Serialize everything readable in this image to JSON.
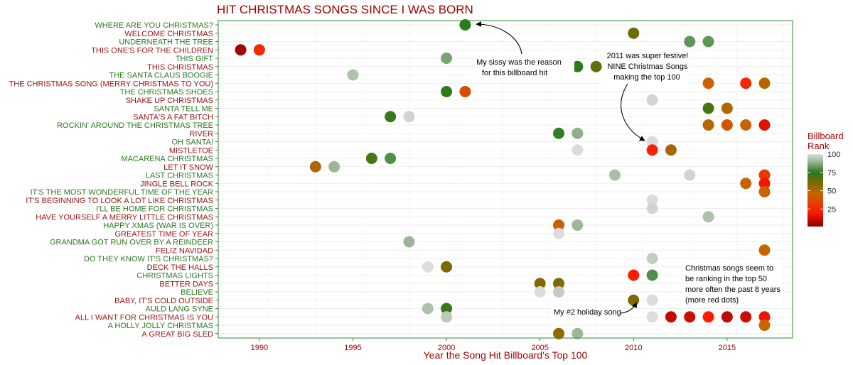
{
  "chart_data": {
    "type": "scatter",
    "title": "HIT CHRISTMAS SONGS SINCE I WAS BORN",
    "xlabel": "Year the Song Hit Billboard's Top 100",
    "ylabel": "",
    "xlim": [
      1987.8,
      2018.5
    ],
    "x_ticks": [
      1990,
      1995,
      2000,
      2005,
      2010,
      2015
    ],
    "grid": true,
    "legend": {
      "title_line1": "Billboard",
      "title_line2": "Rank",
      "position": "right",
      "ticks": [
        100,
        75,
        50,
        25
      ],
      "range": [
        1,
        100
      ]
    },
    "colors": {
      "title": "#a40000",
      "label_odd": "#2a7a1e",
      "label_even": "#a01414",
      "border": "#2e8b2e",
      "grid": "#e9e9e9"
    },
    "songs": [
      {
        "name": "WHERE ARE YOU CHRISTMAS?",
        "points": [
          {
            "year": 2001,
            "rank": 75
          }
        ]
      },
      {
        "name": "WELCOME CHRISTMAS",
        "points": [
          {
            "year": 2010,
            "rank": 62
          }
        ]
      },
      {
        "name": "UNDERNEATH THE TREE",
        "points": [
          {
            "year": 2013,
            "rank": 82
          },
          {
            "year": 2014,
            "rank": 82
          }
        ]
      },
      {
        "name": "THIS ONE'S FOR THE CHILDREN",
        "points": [
          {
            "year": 1989,
            "rank": 5
          },
          {
            "year": 1990,
            "rank": 25
          }
        ]
      },
      {
        "name": "THIS GIFT",
        "points": [
          {
            "year": 2000,
            "rank": 85
          }
        ]
      },
      {
        "name": "THIS CHRISTMAS",
        "points": [
          {
            "year": 2007,
            "rank": 74
          },
          {
            "year": 2008,
            "rank": 65
          }
        ]
      },
      {
        "name": "THE SANTA CLAUS BOOGIE",
        "points": [
          {
            "year": 1995,
            "rank": 93
          }
        ]
      },
      {
        "name": "THE CHRISTMAS SONG (MERRY CHRISTMAS TO YOU)",
        "points": [
          {
            "year": 2014,
            "rank": 44
          },
          {
            "year": 2016,
            "rank": 25
          },
          {
            "year": 2017,
            "rank": 48
          }
        ]
      },
      {
        "name": "THE CHRISTMAS SHOES",
        "points": [
          {
            "year": 2000,
            "rank": 73
          },
          {
            "year": 2001,
            "rank": 37
          }
        ]
      },
      {
        "name": "SHAKE UP CHRISTMAS",
        "points": [
          {
            "year": 2011,
            "rank": 98
          }
        ]
      },
      {
        "name": "SANTA TELL ME",
        "points": [
          {
            "year": 2014,
            "rank": 70
          },
          {
            "year": 2015,
            "rank": 50
          }
        ]
      },
      {
        "name": "SANTA'S A FAT BITCH",
        "points": [
          {
            "year": 1997,
            "rank": 72
          },
          {
            "year": 1998,
            "rank": 98
          }
        ]
      },
      {
        "name": "ROCKIN' AROUND THE CHRISTMAS TREE",
        "points": [
          {
            "year": 2014,
            "rank": 48
          },
          {
            "year": 2015,
            "rank": 40
          },
          {
            "year": 2016,
            "rank": 46
          },
          {
            "year": 2017,
            "rank": 15
          }
        ]
      },
      {
        "name": "RIVER",
        "points": [
          {
            "year": 2006,
            "rank": 76
          },
          {
            "year": 2007,
            "rank": 88
          }
        ]
      },
      {
        "name": "OH SANTA!",
        "points": [
          {
            "year": 2011,
            "rank": 100
          }
        ]
      },
      {
        "name": "MISTLETOE",
        "points": [
          {
            "year": 2007,
            "rank": 100
          },
          {
            "year": 2011,
            "rank": 22
          },
          {
            "year": 2012,
            "rank": 51
          }
        ]
      },
      {
        "name": "MACARENA CHRISTMAS",
        "points": [
          {
            "year": 1996,
            "rank": 70
          },
          {
            "year": 1997,
            "rank": 80
          }
        ]
      },
      {
        "name": "LET IT SNOW",
        "points": [
          {
            "year": 1993,
            "rank": 50
          },
          {
            "year": 1994,
            "rank": 90
          }
        ]
      },
      {
        "name": "LAST CHRISTMAS",
        "points": [
          {
            "year": 2009,
            "rank": 92
          },
          {
            "year": 2013,
            "rank": 98
          },
          {
            "year": 2017,
            "rank": 30
          }
        ]
      },
      {
        "name": "JINGLE BELL ROCK",
        "points": [
          {
            "year": 2016,
            "rank": 45
          },
          {
            "year": 2017,
            "rank": 18
          }
        ]
      },
      {
        "name": "IT'S THE MOST WONDERFUL TIME OF THE YEAR",
        "points": [
          {
            "year": 2017,
            "rank": 45
          }
        ]
      },
      {
        "name": "IT'S BEGINNING TO LOOK A LOT LIKE CHRISTMAS",
        "points": [
          {
            "year": 2011,
            "rank": 100
          }
        ]
      },
      {
        "name": "I'LL BE HOME FOR CHRISTMAS",
        "points": [
          {
            "year": 2011,
            "rank": 98
          }
        ]
      },
      {
        "name": "HAVE YOURSELF A MERRY LITTLE CHRISTMAS",
        "points": [
          {
            "year": 2014,
            "rank": 93
          }
        ]
      },
      {
        "name": "HAPPY XMAS (WAR IS OVER)",
        "points": [
          {
            "year": 2006,
            "rank": 43
          },
          {
            "year": 2007,
            "rank": 90
          }
        ]
      },
      {
        "name": "GREATEST TIME OF YEAR",
        "points": [
          {
            "year": 2006,
            "rank": 100
          }
        ]
      },
      {
        "name": "GRANDMA GOT RUN OVER BY A REINDEER",
        "points": [
          {
            "year": 1998,
            "rank": 90
          }
        ]
      },
      {
        "name": "FELIZ NAVIDAD",
        "points": [
          {
            "year": 2017,
            "rank": 44
          }
        ]
      },
      {
        "name": "DO THEY KNOW IT'S CHRISTMAS?",
        "points": [
          {
            "year": 2011,
            "rank": 96
          }
        ]
      },
      {
        "name": "DECK THE HALLS",
        "points": [
          {
            "year": 1999,
            "rank": 100
          },
          {
            "year": 2000,
            "rank": 60
          }
        ]
      },
      {
        "name": "CHRISTMAS LIGHTS",
        "points": [
          {
            "year": 2010,
            "rank": 20
          },
          {
            "year": 2011,
            "rank": 80
          }
        ]
      },
      {
        "name": "BETTER DAYS",
        "points": [
          {
            "year": 2005,
            "rank": 58
          },
          {
            "year": 2006,
            "rank": 58
          }
        ]
      },
      {
        "name": "BELIEVE",
        "points": [
          {
            "year": 2005,
            "rank": 100
          },
          {
            "year": 2006,
            "rank": 96
          }
        ]
      },
      {
        "name": "BABY, IT'S COLD OUTSIDE",
        "points": [
          {
            "year": 2010,
            "rank": 60
          },
          {
            "year": 2011,
            "rank": 100
          }
        ]
      },
      {
        "name": "AULD LANG SYNE",
        "points": [
          {
            "year": 1999,
            "rank": 93
          },
          {
            "year": 2000,
            "rank": 72
          }
        ]
      },
      {
        "name": "ALL I WANT FOR CHRISTMAS IS YOU",
        "points": [
          {
            "year": 2000,
            "rank": 95
          },
          {
            "year": 2011,
            "rank": 100
          },
          {
            "year": 2012,
            "rank": 10
          },
          {
            "year": 2013,
            "rank": 12
          },
          {
            "year": 2014,
            "rank": 20
          },
          {
            "year": 2015,
            "rank": 9
          },
          {
            "year": 2016,
            "rank": 11
          },
          {
            "year": 2017,
            "rank": 17
          }
        ]
      },
      {
        "name": "A HOLLY JOLLY CHRISTMAS",
        "points": [
          {
            "year": 2017,
            "rank": 45
          }
        ]
      },
      {
        "name": "A GREAT BIG SLED",
        "points": [
          {
            "year": 2006,
            "rank": 55
          },
          {
            "year": 2007,
            "rank": 90
          }
        ]
      }
    ],
    "annotations": [
      {
        "lines": [
          "My sissy was the reason",
          "for this billboard hit"
        ]
      },
      {
        "lines": [
          "2011 was super festive!",
          "NINE Christmas Songs",
          "making the top 100"
        ]
      },
      {
        "lines": [
          "Christmas songs seem to",
          "be ranking in the top 50",
          "more often the past 8 years",
          "(more red dots)"
        ]
      },
      {
        "lines": [
          "My #2 holiday song"
        ]
      }
    ]
  }
}
